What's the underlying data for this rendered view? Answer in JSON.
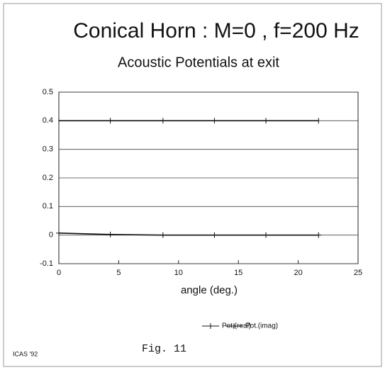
{
  "chart_data": {
    "type": "line",
    "title": "Conical Horn : M=0 , f=200 Hz",
    "subtitle": "Acoustic Potentials at exit",
    "x_label": "angle (deg.)",
    "x": [
      0,
      4.3,
      8.7,
      13,
      17.3,
      21.7
    ],
    "series": [
      {
        "name": "Pot.(real)",
        "color": "#111111",
        "values": [
          0.4,
          0.4,
          0.4,
          0.4,
          0.4,
          0.4
        ]
      },
      {
        "name": "Pot.(imag)",
        "color": "#111111",
        "values": [
          0.007,
          0.002,
          0,
          0,
          0,
          0
        ]
      }
    ],
    "xlim": [
      0,
      25
    ],
    "xticks": [
      0,
      5,
      10,
      15,
      20,
      25
    ],
    "ylim": [
      -0.1,
      0.5
    ],
    "yticks": [
      -0.1,
      0,
      0.1,
      0.2,
      0.3,
      0.4,
      0.5
    ],
    "grid": true,
    "legend": "bottom",
    "footer_left": "ICAS '92",
    "figure_label": "Fig. 11"
  }
}
